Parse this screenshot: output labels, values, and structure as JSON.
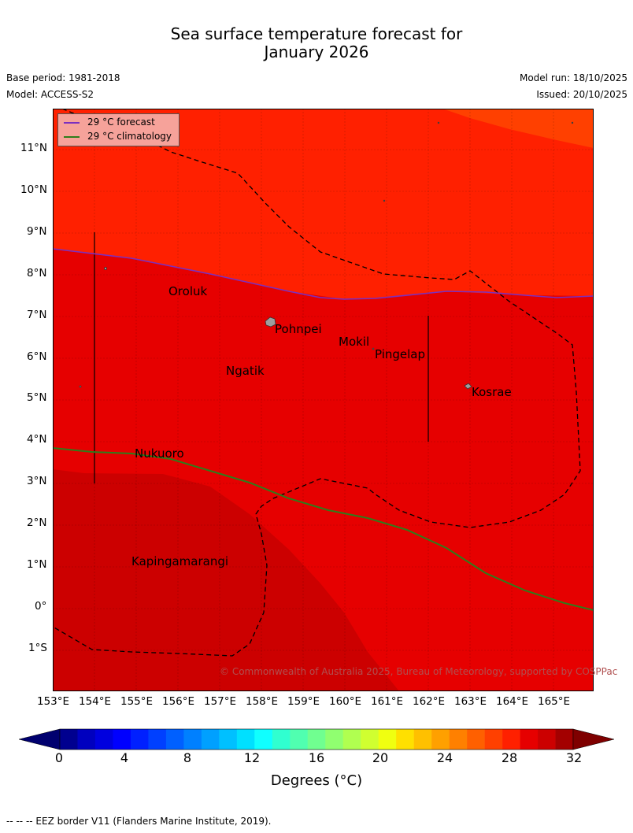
{
  "title_line1": "Sea surface temperature forecast for",
  "title_line2": "January 2026",
  "base_period": "Base period: 1981-2018",
  "model": "Model: ACCESS-S2",
  "model_run": "Model run: 18/10/2025",
  "issued": "Issued: 20/10/2025",
  "legend": {
    "forecast": "29 °C  forecast",
    "climatology": "29 °C  climatology",
    "forecast_color": "#7b2fbf",
    "climatology_color": "#2e7d1b"
  },
  "places": [
    "Oroluk",
    "Pohnpei",
    "Mokil",
    "Pingelap",
    "Ngatik",
    "Kosrae",
    "Nukuoro",
    "Kapingamarangi"
  ],
  "lat_ticks": [
    "11°N",
    "10°N",
    "9°N",
    "8°N",
    "7°N",
    "6°N",
    "5°N",
    "4°N",
    "3°N",
    "2°N",
    "1°N",
    "0°",
    "1°S"
  ],
  "lon_ticks": [
    "153°E",
    "154°E",
    "155°E",
    "156°E",
    "157°E",
    "158°E",
    "159°E",
    "160°E",
    "161°E",
    "162°E",
    "163°E",
    "164°E",
    "165°E"
  ],
  "copyright": "© Commonwealth of Australia 2025, Bureau of Meteorology, supported by COSPPac",
  "colorbar": {
    "ticks": [
      "0",
      "4",
      "8",
      "12",
      "16",
      "20",
      "24",
      "28",
      "32"
    ],
    "label": "Degrees (°C)",
    "colors": [
      "#00008f",
      "#0000bf",
      "#0000df",
      "#0000ff",
      "#0020ff",
      "#0040ff",
      "#0060ff",
      "#0080ff",
      "#00a0ff",
      "#00c0ff",
      "#00e0ff",
      "#10ffff",
      "#30ffd0",
      "#50ffb0",
      "#70ff90",
      "#90ff70",
      "#b0ff50",
      "#d0ff30",
      "#f0ff10",
      "#ffe000",
      "#ffc000",
      "#ffa000",
      "#ff8000",
      "#ff6000",
      "#ff4000",
      "#ff2000",
      "#e60000",
      "#cc0000",
      "#a30000"
    ],
    "under_color": "#00006f",
    "over_color": "#7f0000"
  },
  "footnote": "--  --  -- EEZ border V11 (Flanders Marine Institute, 2019)."
}
